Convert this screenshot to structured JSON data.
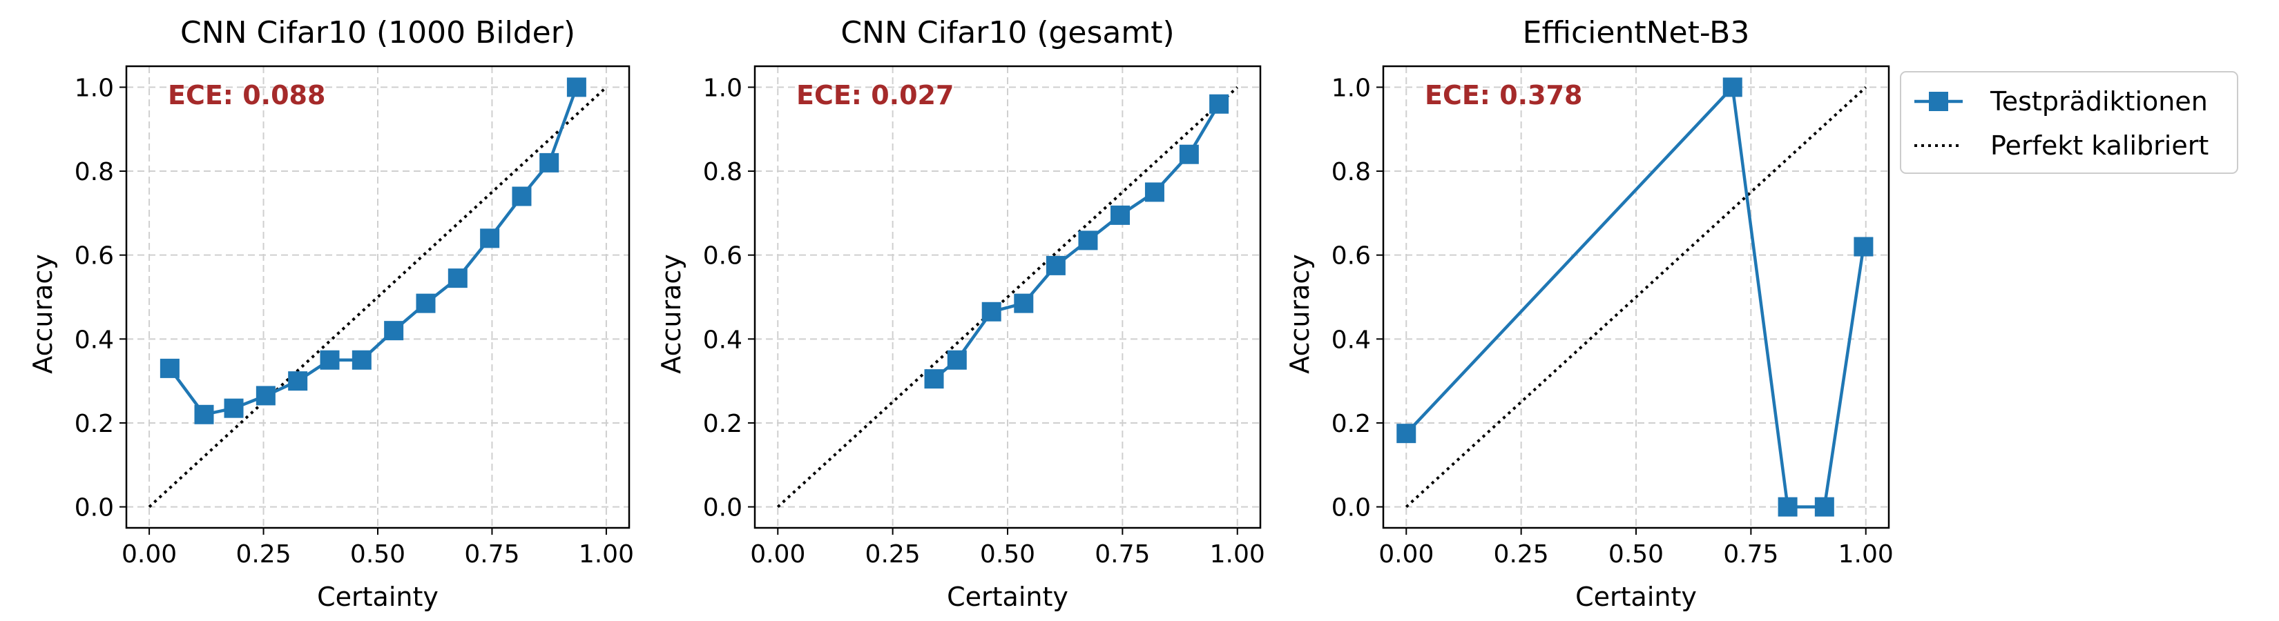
{
  "colors": {
    "series": "#1f77b4",
    "reference": "#000000",
    "ece_text": "#a52a2a",
    "grid": "#cfcfcf",
    "axes": "#000000"
  },
  "legend": {
    "placement": "outside-right",
    "entries": [
      {
        "label": "Testprädiktionen",
        "style": "line-square-marker"
      },
      {
        "label": "Perfekt kalibriert",
        "style": "dotted-line"
      }
    ]
  },
  "chart_data": [
    {
      "type": "line",
      "title": "CNN Cifar10 (1000 Bilder)",
      "xlabel": "Certainty",
      "ylabel": "Accuracy",
      "xlim": [
        -0.05,
        1.05
      ],
      "ylim": [
        -0.05,
        1.05
      ],
      "xticks": [
        "0.00",
        "0.25",
        "0.50",
        "0.75",
        "1.00"
      ],
      "yticks": [
        "0.0",
        "0.2",
        "0.4",
        "0.6",
        "0.8",
        "1.0"
      ],
      "grid": true,
      "annotation": "ECE: 0.088",
      "series": [
        {
          "name": "Testprädiktionen",
          "x": [
            0.045,
            0.12,
            0.185,
            0.255,
            0.325,
            0.395,
            0.465,
            0.535,
            0.605,
            0.675,
            0.745,
            0.815,
            0.875,
            0.935
          ],
          "y": [
            0.33,
            0.22,
            0.235,
            0.265,
            0.3,
            0.35,
            0.35,
            0.42,
            0.485,
            0.545,
            0.64,
            0.74,
            0.82,
            1.0
          ]
        },
        {
          "name": "Perfekt kalibriert",
          "x": [
            0,
            1
          ],
          "y": [
            0,
            1
          ]
        }
      ]
    },
    {
      "type": "line",
      "title": "CNN Cifar10 (gesamt)",
      "xlabel": "Certainty",
      "ylabel": "Accuracy",
      "xlim": [
        -0.05,
        1.05
      ],
      "ylim": [
        -0.05,
        1.05
      ],
      "xticks": [
        "0.00",
        "0.25",
        "0.50",
        "0.75",
        "1.00"
      ],
      "yticks": [
        "0.0",
        "0.2",
        "0.4",
        "0.6",
        "0.8",
        "1.0"
      ],
      "grid": true,
      "annotation": "ECE: 0.027",
      "series": [
        {
          "name": "Testprädiktionen",
          "x": [
            0.34,
            0.39,
            0.465,
            0.535,
            0.605,
            0.675,
            0.745,
            0.82,
            0.895,
            0.96
          ],
          "y": [
            0.305,
            0.35,
            0.465,
            0.485,
            0.575,
            0.635,
            0.695,
            0.75,
            0.84,
            0.96
          ]
        },
        {
          "name": "Perfekt kalibriert",
          "x": [
            0,
            1
          ],
          "y": [
            0,
            1
          ]
        }
      ]
    },
    {
      "type": "line",
      "title": "EfficientNet-B3",
      "xlabel": "Certainty",
      "ylabel": "Accuracy",
      "xlim": [
        -0.05,
        1.05
      ],
      "ylim": [
        -0.05,
        1.05
      ],
      "xticks": [
        "0.00",
        "0.25",
        "0.50",
        "0.75",
        "1.00"
      ],
      "yticks": [
        "0.0",
        "0.2",
        "0.4",
        "0.6",
        "0.8",
        "1.0"
      ],
      "grid": true,
      "annotation": "ECE: 0.378",
      "series": [
        {
          "name": "Testprädiktionen",
          "x": [
            0.0,
            0.71,
            0.83,
            0.91,
            0.995
          ],
          "y": [
            0.175,
            1.0,
            0.0,
            0.0,
            0.62
          ]
        },
        {
          "name": "Perfekt kalibriert",
          "x": [
            0,
            1
          ],
          "y": [
            0,
            1
          ]
        }
      ]
    }
  ]
}
